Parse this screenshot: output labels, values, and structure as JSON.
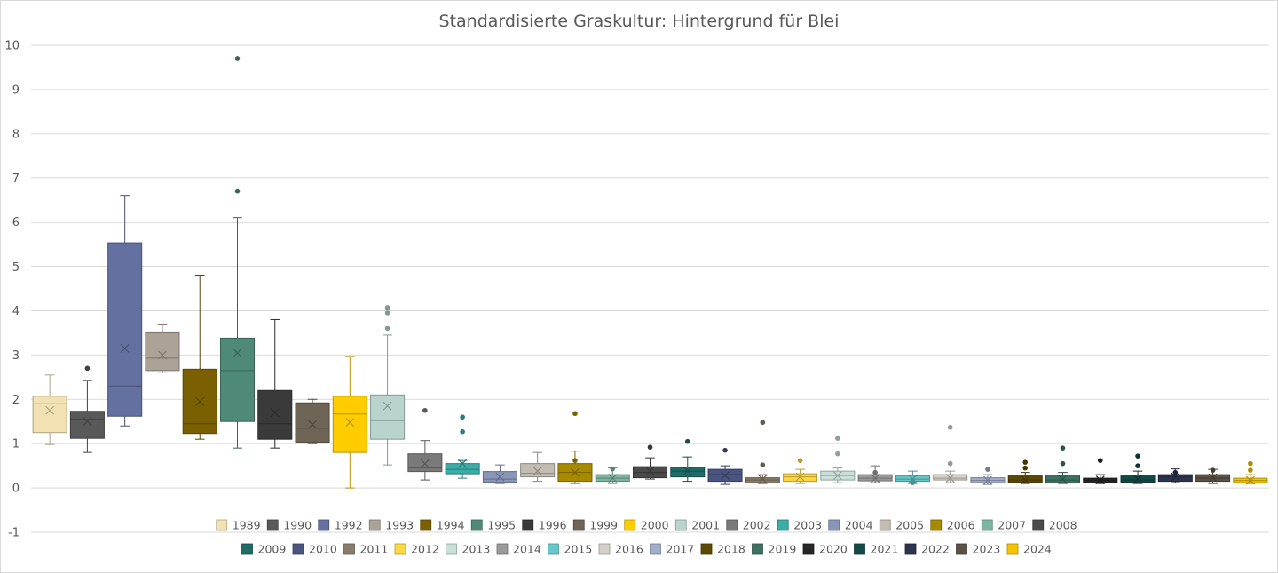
{
  "chart_data": {
    "type": "boxplot",
    "title": "Standardisierte Graskultur: Hintergrund für Blei",
    "xlabel": "",
    "ylabel": "",
    "ylim": [
      -1,
      10
    ],
    "y_ticks": [
      -1,
      0,
      1,
      2,
      3,
      4,
      5,
      6,
      7,
      8,
      9,
      10
    ],
    "grid": true,
    "legend_position": "bottom",
    "series": [
      {
        "name": "1989",
        "color": "#f2e2b3",
        "min": 0.98,
        "q1": 1.25,
        "median": 1.9,
        "q3": 2.07,
        "max": 2.55,
        "mean": 1.75,
        "outliers": []
      },
      {
        "name": "1990",
        "color": "#595959",
        "min": 0.8,
        "q1": 1.12,
        "median": 1.55,
        "q3": 1.73,
        "max": 2.43,
        "mean": 1.5,
        "outliers": [
          2.7
        ]
      },
      {
        "name": "1992",
        "color": "#6471a0",
        "min": 1.4,
        "q1": 1.62,
        "median": 2.3,
        "q3": 5.53,
        "max": 6.6,
        "mean": 3.15,
        "outliers": []
      },
      {
        "name": "1993",
        "color": "#aba397",
        "min": 2.6,
        "q1": 2.65,
        "median": 2.93,
        "q3": 3.52,
        "max": 3.7,
        "mean": 3.0,
        "outliers": []
      },
      {
        "name": "1994",
        "color": "#7a6000",
        "min": 1.1,
        "q1": 1.23,
        "median": 1.45,
        "q3": 2.68,
        "max": 4.8,
        "mean": 1.95,
        "outliers": []
      },
      {
        "name": "1995",
        "color": "#4f8a78",
        "min": 0.9,
        "q1": 1.5,
        "median": 2.65,
        "q3": 3.38,
        "max": 6.1,
        "mean": 3.05,
        "outliers": [
          6.7,
          9.7
        ]
      },
      {
        "name": "1996",
        "color": "#3a3a3a",
        "min": 0.9,
        "q1": 1.1,
        "median": 1.45,
        "q3": 2.2,
        "max": 3.8,
        "mean": 1.7,
        "outliers": []
      },
      {
        "name": "1999",
        "color": "#6e6556",
        "min": 1.0,
        "q1": 1.03,
        "median": 1.35,
        "q3": 1.92,
        "max": 2.0,
        "mean": 1.43,
        "outliers": []
      },
      {
        "name": "2000",
        "color": "#ffcc00",
        "min": 0.0,
        "q1": 0.8,
        "median": 1.67,
        "q3": 2.07,
        "max": 2.97,
        "mean": 1.48,
        "outliers": []
      },
      {
        "name": "2001",
        "color": "#b8d4cc",
        "min": 0.52,
        "q1": 1.1,
        "median": 1.52,
        "q3": 2.1,
        "max": 3.45,
        "mean": 1.85,
        "outliers": [
          3.6,
          3.95,
          4.07
        ]
      },
      {
        "name": "2002",
        "color": "#7a7a7a",
        "min": 0.18,
        "q1": 0.37,
        "median": 0.45,
        "q3": 0.77,
        "max": 1.07,
        "mean": 0.55,
        "outliers": [
          1.75
        ]
      },
      {
        "name": "2003",
        "color": "#3aada8",
        "min": 0.22,
        "q1": 0.32,
        "median": 0.42,
        "q3": 0.55,
        "max": 0.62,
        "mean": 0.55,
        "outliers": [
          1.27,
          1.6
        ]
      },
      {
        "name": "2004",
        "color": "#8896b8",
        "min": 0.1,
        "q1": 0.13,
        "median": 0.2,
        "q3": 0.37,
        "max": 0.52,
        "mean": 0.25,
        "outliers": []
      },
      {
        "name": "2005",
        "color": "#c2bcb2",
        "min": 0.15,
        "q1": 0.25,
        "median": 0.33,
        "q3": 0.55,
        "max": 0.8,
        "mean": 0.38,
        "outliers": []
      },
      {
        "name": "2006",
        "color": "#a88a00",
        "min": 0.1,
        "q1": 0.15,
        "median": 0.35,
        "q3": 0.55,
        "max": 0.83,
        "mean": 0.35,
        "outliers": [
          0.62,
          1.68
        ]
      },
      {
        "name": "2007",
        "color": "#7eb5a2",
        "min": 0.1,
        "q1": 0.15,
        "median": 0.22,
        "q3": 0.3,
        "max": 0.45,
        "mean": 0.22,
        "outliers": [
          0.43
        ]
      },
      {
        "name": "2008",
        "color": "#4a4a4a",
        "min": 0.2,
        "q1": 0.23,
        "median": 0.35,
        "q3": 0.48,
        "max": 0.68,
        "mean": 0.38,
        "outliers": [
          0.92
        ]
      },
      {
        "name": "2009",
        "color": "#1e6b68",
        "min": 0.15,
        "q1": 0.25,
        "median": 0.38,
        "q3": 0.47,
        "max": 0.7,
        "mean": 0.38,
        "outliers": [
          1.05
        ]
      },
      {
        "name": "2010",
        "color": "#4a5480",
        "min": 0.08,
        "q1": 0.15,
        "median": 0.3,
        "q3": 0.42,
        "max": 0.5,
        "mean": 0.28,
        "outliers": [
          0.85
        ]
      },
      {
        "name": "2011",
        "color": "#8a7e6a",
        "min": 0.1,
        "q1": 0.12,
        "median": 0.18,
        "q3": 0.23,
        "max": 0.3,
        "mean": 0.2,
        "outliers": [
          0.52,
          1.48
        ]
      },
      {
        "name": "2012",
        "color": "#ffd840",
        "min": 0.1,
        "q1": 0.15,
        "median": 0.25,
        "q3": 0.32,
        "max": 0.42,
        "mean": 0.25,
        "outliers": [
          0.62
        ]
      },
      {
        "name": "2013",
        "color": "#c8e0d8",
        "min": 0.12,
        "q1": 0.18,
        "median": 0.28,
        "q3": 0.38,
        "max": 0.45,
        "mean": 0.28,
        "outliers": [
          0.77,
          1.12
        ]
      },
      {
        "name": "2014",
        "color": "#9a9a9a",
        "min": 0.12,
        "q1": 0.16,
        "median": 0.22,
        "q3": 0.3,
        "max": 0.5,
        "mean": 0.22,
        "outliers": [
          0.35
        ]
      },
      {
        "name": "2015",
        "color": "#66c8c8",
        "min": 0.1,
        "q1": 0.15,
        "median": 0.2,
        "q3": 0.27,
        "max": 0.38,
        "mean": 0.2,
        "outliers": [
          0.12
        ]
      },
      {
        "name": "2016",
        "color": "#d4d0c8",
        "min": 0.12,
        "q1": 0.18,
        "median": 0.22,
        "q3": 0.3,
        "max": 0.38,
        "mean": 0.22,
        "outliers": [
          0.55,
          1.37
        ]
      },
      {
        "name": "2017",
        "color": "#a3aecb",
        "min": 0.08,
        "q1": 0.12,
        "median": 0.17,
        "q3": 0.23,
        "max": 0.3,
        "mean": 0.17,
        "outliers": [
          0.42
        ]
      },
      {
        "name": "2018",
        "color": "#5c4a00",
        "min": 0.1,
        "q1": 0.13,
        "median": 0.18,
        "q3": 0.27,
        "max": 0.35,
        "mean": 0.18,
        "outliers": [
          0.45,
          0.58
        ]
      },
      {
        "name": "2019",
        "color": "#3d7263",
        "min": 0.1,
        "q1": 0.12,
        "median": 0.18,
        "q3": 0.27,
        "max": 0.35,
        "mean": 0.2,
        "outliers": [
          0.55,
          0.9
        ]
      },
      {
        "name": "2020",
        "color": "#262626",
        "min": 0.1,
        "q1": 0.12,
        "median": 0.17,
        "q3": 0.22,
        "max": 0.3,
        "mean": 0.18,
        "outliers": [
          0.62
        ]
      },
      {
        "name": "2021",
        "color": "#124a48",
        "min": 0.1,
        "q1": 0.13,
        "median": 0.18,
        "q3": 0.27,
        "max": 0.38,
        "mean": 0.2,
        "outliers": [
          0.5,
          0.72
        ]
      },
      {
        "name": "2022",
        "color": "#2e3450",
        "min": 0.12,
        "q1": 0.15,
        "median": 0.25,
        "q3": 0.3,
        "max": 0.43,
        "mean": 0.25,
        "outliers": [
          0.35
        ]
      },
      {
        "name": "2023",
        "color": "#5a5244",
        "min": 0.1,
        "q1": 0.15,
        "median": 0.22,
        "q3": 0.3,
        "max": 0.42,
        "mean": 0.23,
        "outliers": [
          0.4
        ]
      },
      {
        "name": "2024",
        "color": "#f5c400",
        "min": 0.1,
        "q1": 0.12,
        "median": 0.17,
        "q3": 0.22,
        "max": 0.3,
        "mean": 0.17,
        "outliers": [
          0.4,
          0.55
        ]
      }
    ]
  }
}
